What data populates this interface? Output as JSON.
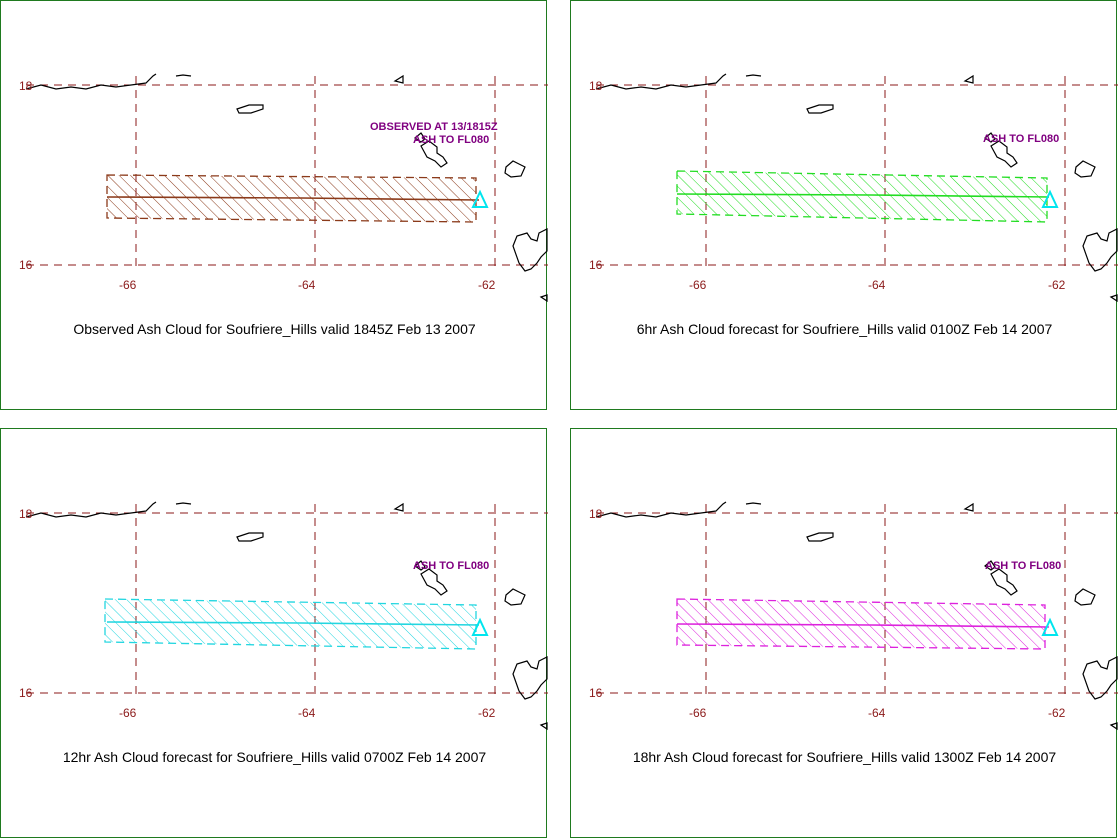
{
  "colors": {
    "grid": "#8b1a1a",
    "frame": "#1f7a1f",
    "coast": "#000000",
    "label": "#800080",
    "volcano_marker": "#00e5ee"
  },
  "grid": {
    "lat_labels": [
      "18",
      "16"
    ],
    "lon_labels": [
      "-66",
      "-64",
      "-62"
    ]
  },
  "panels": [
    {
      "id": "observed",
      "caption": "Observed Ash Cloud for Soufriere_Hills valid 1845Z Feb 13 2007",
      "notes": [
        "OBSERVED AT 13/1815Z",
        "ASH TO FL080"
      ],
      "color": "#8b3a1a"
    },
    {
      "id": "fcst-6hr",
      "caption": "6hr Ash Cloud forecast for Soufriere_Hills valid 0100Z Feb 14 2007",
      "notes": [
        "ASH TO FL080"
      ],
      "color": "#22dd22"
    },
    {
      "id": "fcst-12hr",
      "caption": "12hr Ash Cloud forecast for Soufriere_Hills valid 0700Z Feb 14 2007",
      "notes": [
        "ASH TO FL080"
      ],
      "color": "#22d6e0"
    },
    {
      "id": "fcst-18hr",
      "caption": "18hr Ash Cloud forecast for Soufriere_Hills valid 1300Z Feb 14 2007",
      "notes": [
        "ASH TO FL080"
      ],
      "color": "#dd22dd"
    }
  ]
}
